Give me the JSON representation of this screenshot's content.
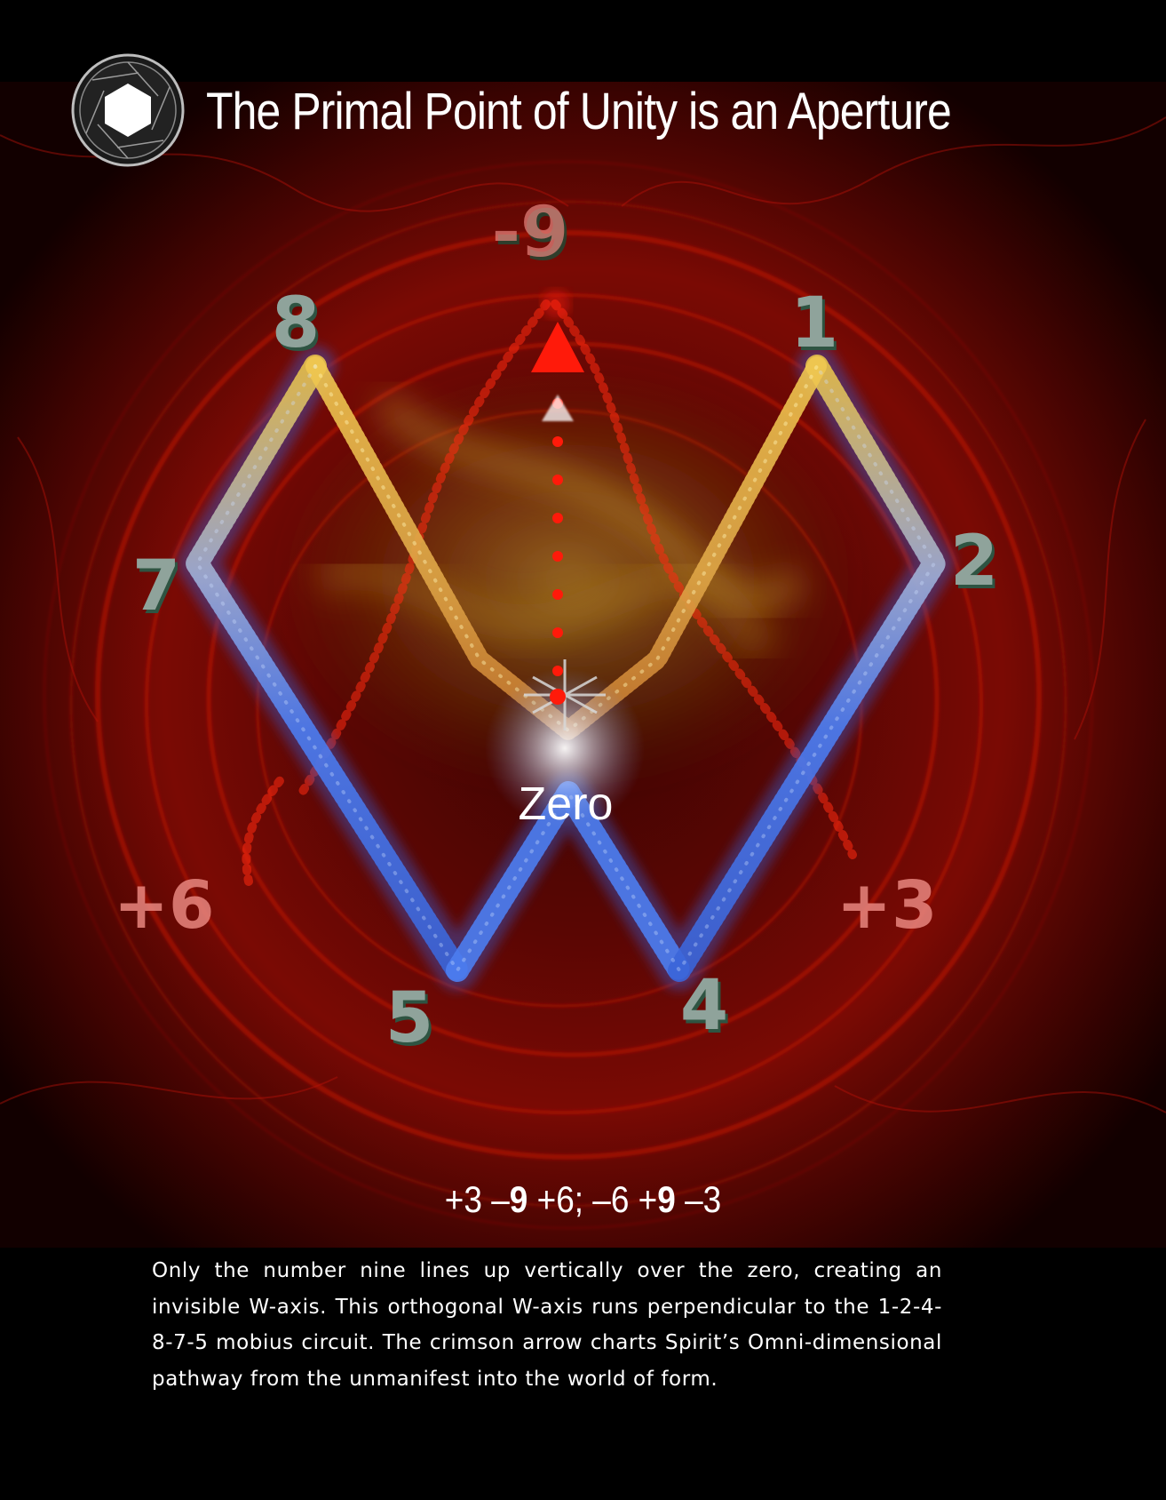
{
  "header": {
    "title": "The Primal Point of Unity is an Aperture",
    "logo_icon": "camera-aperture-icon"
  },
  "diagram": {
    "center_label": "Zero",
    "top_label": "-9",
    "digit_labels": [
      "1",
      "2",
      "4",
      "5",
      "7",
      "8"
    ],
    "plus_six": "+6",
    "plus_three": "+3",
    "arrow_icon": "triangle-arrow-up-icon",
    "colors": {
      "background_glow": "#8a0c05",
      "arrow": "#ff1a0a",
      "circuit_blue": "#4d7df0",
      "circuit_gold": "#e6c24a",
      "digit_fill": "#8fa39b",
      "plus_digit_fill": "#e8867f"
    }
  },
  "equation": {
    "p1": "+3 –",
    "b1": "9",
    "p2": " +6; –6 +",
    "b2": "9",
    "p3": " –3"
  },
  "caption": {
    "text": "Only the number nine lines up vertically over the zero, creating an invisible W-axis. This orthogonal W-axis runs perpendicular to the 1-2-4-8-7-5 mobius circuit. The crimson arrow charts Spirit’s Omni-dimensional pathway from the unmanifest into the world of form."
  }
}
